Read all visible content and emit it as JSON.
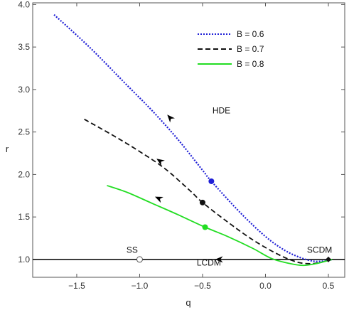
{
  "chart_data": {
    "type": "line",
    "title": "",
    "xlabel": "q",
    "ylabel": "r",
    "xlim": [
      -1.85,
      0.63
    ],
    "ylim": [
      0.79,
      4.02
    ],
    "xticks": [
      -1.5,
      -1.0,
      -0.5,
      0.0,
      0.5
    ],
    "xtick_labels": [
      "−1.5",
      "−1.0",
      "−0.5",
      "0.0",
      "0.5"
    ],
    "yticks": [
      1.0,
      1.5,
      2.0,
      2.5,
      3.0,
      3.5,
      4.0
    ],
    "ytick_labels": [
      "1.0",
      "1.5",
      "2.0",
      "2.5",
      "3.0",
      "3.5",
      "4.0"
    ],
    "legend_position": "top-right",
    "grid": false,
    "series": [
      {
        "name": "B = 0.6",
        "color": "#1f1fd6",
        "style": "dotted",
        "x": [
          -1.68,
          -1.4,
          -1.1,
          -0.9,
          -0.7,
          -0.5,
          -0.43,
          -0.2,
          0.0,
          0.15,
          0.28,
          0.38,
          0.45,
          0.5,
          0.53
        ],
        "y": [
          3.88,
          3.5,
          3.05,
          2.75,
          2.42,
          2.05,
          1.92,
          1.55,
          1.27,
          1.11,
          1.02,
          0.98,
          0.98,
          0.99,
          1.0
        ],
        "marker": {
          "x": -0.43,
          "y": 1.92
        }
      },
      {
        "name": "B = 0.7",
        "color": "#111111",
        "style": "dashed",
        "x": [
          -1.44,
          -1.2,
          -1.0,
          -0.8,
          -0.6,
          -0.5,
          -0.3,
          -0.1,
          0.1,
          0.25,
          0.35,
          0.42,
          0.48,
          0.53
        ],
        "y": [
          2.65,
          2.45,
          2.27,
          2.07,
          1.81,
          1.67,
          1.44,
          1.23,
          1.06,
          0.97,
          0.95,
          0.96,
          0.98,
          1.0
        ],
        "marker": {
          "x": -0.5,
          "y": 1.67
        }
      },
      {
        "name": "B = 0.8",
        "color": "#22dd22",
        "style": "solid",
        "x": [
          -1.26,
          -1.1,
          -0.9,
          -0.7,
          -0.48,
          -0.3,
          -0.1,
          0.05,
          0.2,
          0.3,
          0.4,
          0.48,
          0.53
        ],
        "y": [
          1.87,
          1.79,
          1.66,
          1.53,
          1.38,
          1.27,
          1.13,
          1.01,
          0.95,
          0.93,
          0.95,
          0.98,
          1.0
        ],
        "marker": {
          "x": -0.48,
          "y": 1.38
        }
      }
    ],
    "arrows": [
      {
        "series": "B = 0.6",
        "x": -0.76,
        "y": 2.67
      },
      {
        "series": "B = 0.7",
        "x": -0.84,
        "y": 2.16
      },
      {
        "series": "B = 0.8",
        "x": -0.85,
        "y": 1.72
      },
      {
        "series": "r = 1",
        "x": -0.37,
        "y": 1.0
      }
    ],
    "reference_line": {
      "y": 1.0,
      "color": "#111111"
    },
    "points": [
      {
        "label": "SS",
        "x": -1.0,
        "y": 1.0,
        "fill": "none"
      },
      {
        "label": "SCDM",
        "x": 0.5,
        "y": 1.0,
        "fill": "#111111"
      }
    ],
    "annotations": [
      {
        "text": "HDE",
        "x": -0.35,
        "y": 2.72
      },
      {
        "text": "SS",
        "x": -1.06,
        "y": 1.08
      },
      {
        "text": "LCDM",
        "x": -0.45,
        "y": 0.93
      },
      {
        "text": "SCDM",
        "x": 0.43,
        "y": 1.08
      }
    ]
  }
}
